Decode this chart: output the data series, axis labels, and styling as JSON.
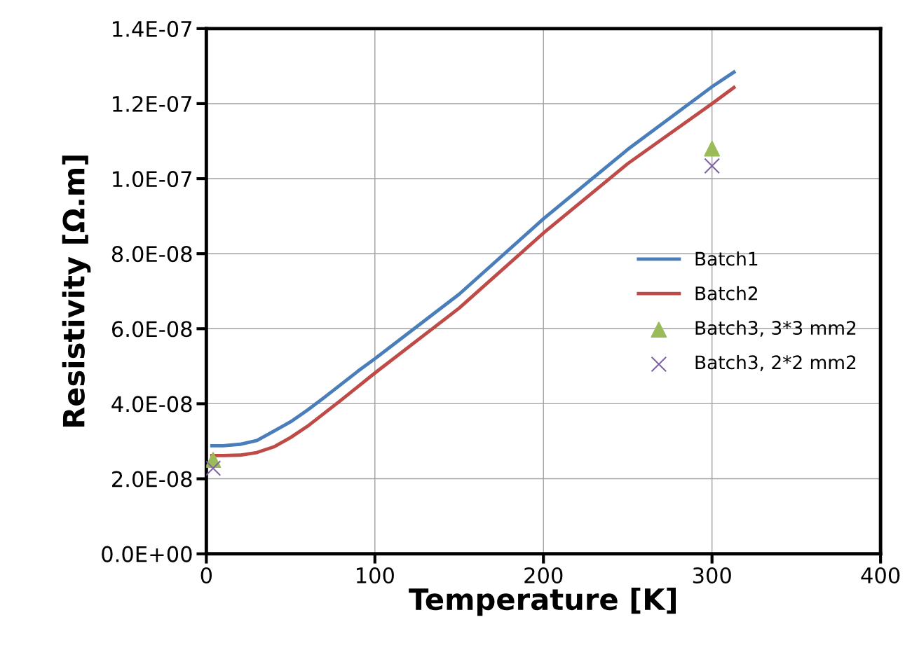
{
  "chart_data": {
    "type": "line",
    "xlabel": "Temperature [K]",
    "ylabel": "Resistivity [Ω.m]",
    "xlim": [
      0,
      400
    ],
    "xticks": [
      0,
      100,
      200,
      300,
      400
    ],
    "ylim": [
      0,
      1.4e-07
    ],
    "yticks": [
      {
        "value": 0,
        "label": "0.0E+00"
      },
      {
        "value": 2e-08,
        "label": "2.0E-08"
      },
      {
        "value": 4e-08,
        "label": "4.0E-08"
      },
      {
        "value": 6e-08,
        "label": "6.0E-08"
      },
      {
        "value": 8e-08,
        "label": "8.0E-08"
      },
      {
        "value": 1e-07,
        "label": "1.0E-07"
      },
      {
        "value": 1.2e-07,
        "label": "1.2E-07"
      },
      {
        "value": 1.4e-07,
        "label": "1.4E-07"
      }
    ],
    "grid": true,
    "legend": "right",
    "series": [
      {
        "name": "Batch1",
        "color": "#4a7ebb",
        "marker": "none",
        "x": [
          3.3,
          10,
          20,
          30,
          40,
          50,
          60,
          70,
          80,
          90,
          100,
          150,
          200,
          250,
          300,
          313
        ],
        "values": [
          2.88e-08,
          2.88e-08,
          2.92e-08,
          3.02e-08,
          3.27e-08,
          3.52e-08,
          3.83e-08,
          4.17e-08,
          4.52e-08,
          4.87e-08,
          5.2e-08,
          6.92e-08,
          8.93e-08,
          1.078e-07,
          1.245e-07,
          1.284e-07
        ]
      },
      {
        "name": "Batch2",
        "color": "#be4b48",
        "marker": "none",
        "x": [
          3.3,
          10,
          20,
          30,
          40,
          50,
          60,
          70,
          80,
          90,
          100,
          150,
          200,
          250,
          300,
          313
        ],
        "values": [
          2.62e-08,
          2.62e-08,
          2.63e-08,
          2.7e-08,
          2.85e-08,
          3.1e-08,
          3.4e-08,
          3.75e-08,
          4.1e-08,
          4.46e-08,
          4.82e-08,
          6.55e-08,
          8.55e-08,
          1.04e-07,
          1.2e-07,
          1.243e-07
        ]
      },
      {
        "name": "Batch3, 3*3 mm2",
        "type": "scatter",
        "color": "#9bbb59",
        "marker": "triangle",
        "x": [
          4,
          300
        ],
        "values": [
          2.5e-08,
          1.08e-07
        ]
      },
      {
        "name": "Batch3, 2*2 mm2",
        "type": "scatter",
        "color": "#8064a2",
        "marker": "cross",
        "x": [
          4,
          300
        ],
        "values": [
          2.28e-08,
          1.034e-07
        ]
      }
    ]
  }
}
